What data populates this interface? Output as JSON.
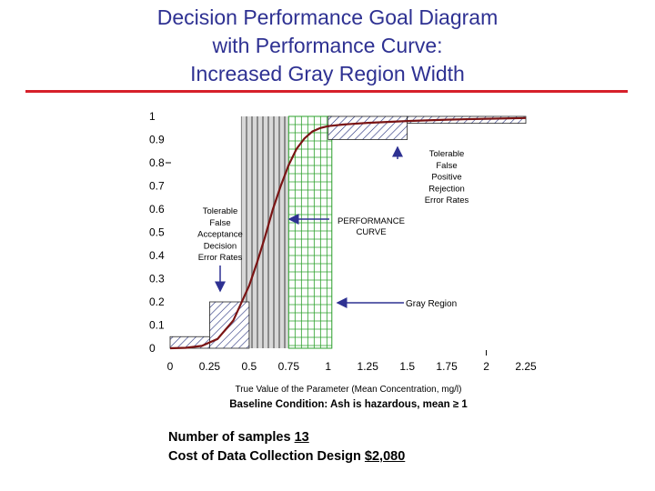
{
  "title_lines": [
    "Decision Performance Goal Diagram",
    "with Performance Curve:",
    "Increased Gray Region Width"
  ],
  "chart_data": {
    "type": "line",
    "title": "Decision Performance Goal Diagram with Performance Curve: Increased Gray Region Width",
    "xlabel": "True Value of the Parameter (Mean Concentration, mg/l)",
    "baseline_text": "Baseline Condition: Ash is hazardous, mean ",
    "baseline_symbol": "≥",
    "baseline_value": " 1",
    "xlim": [
      0,
      2.25
    ],
    "ylim": [
      0,
      1
    ],
    "x_tick_labels": [
      "0",
      "0.25",
      "0.5",
      "0.75",
      "1",
      "1.25",
      "1.5",
      "1.75",
      "2",
      "2.25"
    ],
    "y_tick_labels": [
      "0",
      "0.1",
      "0.2",
      "0.3",
      "0.4",
      "0.5",
      "0.6",
      "0.7",
      "0.8",
      "0.9",
      "1"
    ],
    "gray_region": {
      "x_start": 0.5,
      "x_end": 1.0
    },
    "tolerable_false_acceptance_regions": [
      {
        "x_start": 0,
        "x_end": 0.25,
        "y_max": 0.05
      },
      {
        "x_start": 0.25,
        "x_end": 0.5,
        "y_max": 0.2
      }
    ],
    "tolerable_false_positive_region": {
      "x_start": 1.0,
      "x_end": 1.5,
      "y_min": 0.9
    },
    "upper_band": {
      "x_start": 1.5,
      "x_end": 2.25,
      "y_min": 0.97
    },
    "series": [
      {
        "x": [
          0,
          0.1,
          0.2,
          0.3,
          0.4,
          0.5,
          0.55,
          0.6,
          0.65,
          0.7,
          0.75,
          0.8,
          0.85,
          0.9,
          0.95,
          1.0,
          1.1,
          1.25,
          1.5,
          1.75,
          2.0,
          2.25
        ],
        "values": [
          0.0,
          0.002,
          0.01,
          0.04,
          0.12,
          0.27,
          0.37,
          0.48,
          0.6,
          0.7,
          0.79,
          0.86,
          0.905,
          0.935,
          0.95,
          0.958,
          0.965,
          0.972,
          0.98,
          0.986,
          0.99,
          0.993
        ]
      }
    ],
    "annotations": {
      "false_acceptance": [
        "Tolerable",
        "False",
        "Acceptance",
        "Decision",
        "Error Rates"
      ],
      "false_positive": [
        "Tolerable",
        "False",
        "Positive",
        "Rejection",
        "Error Rates"
      ],
      "performance_curve": [
        "PERFORMANCE",
        "CURVE"
      ],
      "gray_region": "Gray Region"
    },
    "colors": {
      "curve": "#7a1414",
      "arrow": "#2e3192",
      "hatch": "#1e2a78",
      "green_grid": "#2ca02c"
    }
  },
  "footer": {
    "samples_label": "Number of samples ",
    "samples_value": "13",
    "cost_label": "Cost of Data Collection Design ",
    "cost_value": "$2,080"
  }
}
